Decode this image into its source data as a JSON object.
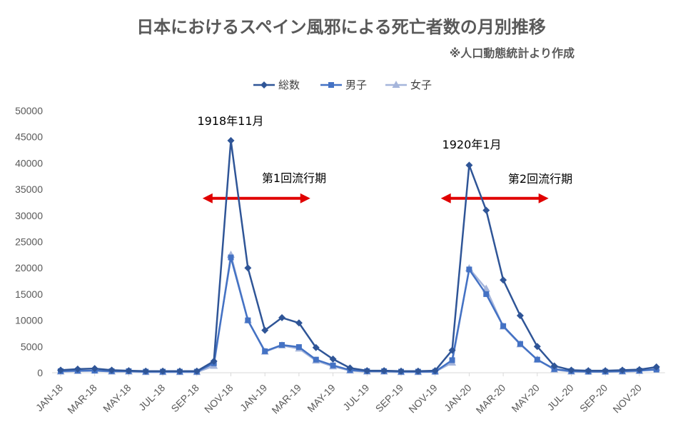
{
  "chart_data": {
    "type": "line",
    "title": "日本におけるスペイン風邪による死亡者数の月別推移",
    "subtitle": "※人口動態統計より作成",
    "categories": [
      "JAN-18",
      "FEB-18",
      "MAR-18",
      "APR-18",
      "MAY-18",
      "JUN-18",
      "JUL-18",
      "AUG-18",
      "SEP-18",
      "OCT-18",
      "NOV-18",
      "DEC-18",
      "JAN-19",
      "FEB-19",
      "MAR-19",
      "APR-19",
      "MAY-19",
      "JUN-19",
      "JUL-19",
      "AUG-19",
      "SEP-19",
      "OCT-19",
      "NOV-19",
      "DEC-19",
      "JAN-20",
      "FEB-20",
      "MAR-20",
      "APR-20",
      "MAY-20",
      "JUN-20",
      "JUL-20",
      "AUG-20",
      "SEP-20",
      "OCT-20",
      "NOV-20",
      "DEC-20"
    ],
    "xtick_labels": [
      "JAN-18",
      "MAR-18",
      "MAY-18",
      "JUL-18",
      "SEP-18",
      "NOV-18",
      "JAN-19",
      "MAR-19",
      "MAY-19",
      "JUL-19",
      "SEP-19",
      "NOV-19",
      "JAN-20",
      "MAR-20",
      "MAY-20",
      "JUL-20",
      "SEP-20",
      "NOV-20"
    ],
    "yticks": [
      0,
      5000,
      10000,
      15000,
      20000,
      25000,
      30000,
      35000,
      40000,
      45000,
      50000
    ],
    "ylim": [
      0,
      50000
    ],
    "legend_position": "top",
    "grid": false,
    "series": [
      {
        "name": "総数",
        "marker": "diamond",
        "color": "#2F5597",
        "values": [
          500,
          700,
          800,
          500,
          400,
          300,
          300,
          300,
          300,
          2200,
          44300,
          20000,
          8100,
          10500,
          9500,
          4800,
          2600,
          900,
          400,
          400,
          300,
          300,
          400,
          4300,
          39600,
          31000,
          17700,
          10900,
          5000,
          1300,
          500,
          400,
          400,
          500,
          600,
          1100
        ]
      },
      {
        "name": "男子",
        "marker": "square",
        "color": "#4472C4",
        "values": [
          300,
          400,
          400,
          300,
          300,
          200,
          200,
          200,
          200,
          1800,
          22000,
          10000,
          4100,
          5300,
          4900,
          2500,
          1400,
          500,
          300,
          300,
          200,
          200,
          200,
          2400,
          19700,
          15000,
          8900,
          5500,
          2500,
          700,
          300,
          200,
          200,
          300,
          400,
          600
        ]
      },
      {
        "name": "女子",
        "marker": "triangle",
        "color": "#A5B5DB",
        "values": [
          200,
          300,
          400,
          200,
          200,
          100,
          100,
          100,
          100,
          1300,
          22500,
          10000,
          4000,
          5200,
          4600,
          2300,
          1200,
          400,
          200,
          200,
          100,
          100,
          200,
          1900,
          19900,
          16000,
          8800,
          5400,
          2500,
          600,
          200,
          200,
          200,
          200,
          300,
          900
        ]
      }
    ],
    "annotations": [
      {
        "text": "1918年11月"
      },
      {
        "text": "第1回流行期",
        "arrow_from": "SEP-18",
        "arrow_to": "APR-19",
        "arrow_value": 33000,
        "arrow_color": "#E00000"
      },
      {
        "text": "1920年1月"
      },
      {
        "text": "第2回流行期",
        "arrow_from": "NOV-19",
        "arrow_to": "JUN-20",
        "arrow_value": 33000,
        "arrow_color": "#E00000"
      }
    ]
  }
}
